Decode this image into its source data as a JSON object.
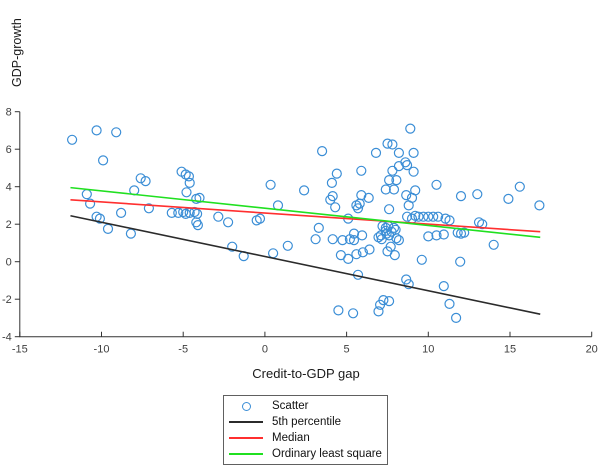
{
  "figure": {
    "background": "#ffffff",
    "axis_color": "#333333",
    "tick_label_color": "#404040"
  },
  "chart_data": {
    "type": "scatter",
    "title": "",
    "xlabel": "Credit-to-GDP gap",
    "ylabel": "GDP-growth",
    "xlim": [
      -15,
      20
    ],
    "ylim": [
      -4,
      8
    ],
    "xticks": [
      -15,
      -10,
      -5,
      0,
      5,
      10,
      15,
      20
    ],
    "yticks": [
      -4,
      -2,
      0,
      2,
      4,
      6,
      8
    ],
    "grid": false,
    "legend_position": "below-center",
    "series": [
      {
        "name": "Scatter",
        "type": "scatter",
        "marker": "open-circle",
        "color": "#3b8ed6",
        "points": [
          [
            -11.8,
            6.5
          ],
          [
            -10.9,
            3.6
          ],
          [
            -10.7,
            3.1
          ],
          [
            -10.3,
            7.0
          ],
          [
            -10.3,
            2.4
          ],
          [
            -10.1,
            2.3
          ],
          [
            -9.9,
            5.4
          ],
          [
            -9.6,
            1.75
          ],
          [
            -9.1,
            6.9
          ],
          [
            -8.8,
            2.6
          ],
          [
            -8.2,
            1.5
          ],
          [
            -8.0,
            3.8
          ],
          [
            -7.6,
            4.45
          ],
          [
            -7.3,
            4.3
          ],
          [
            -7.1,
            2.85
          ],
          [
            -5.7,
            2.6
          ],
          [
            -5.3,
            2.6
          ],
          [
            -5.1,
            4.8
          ],
          [
            -5.0,
            2.65
          ],
          [
            -4.85,
            4.65
          ],
          [
            -4.85,
            2.55
          ],
          [
            -4.8,
            3.7
          ],
          [
            -4.65,
            4.55
          ],
          [
            -4.6,
            4.2
          ],
          [
            -4.6,
            2.6
          ],
          [
            -4.3,
            2.65
          ],
          [
            -4.2,
            3.35
          ],
          [
            -4.15,
            2.55
          ],
          [
            -4.2,
            2.1
          ],
          [
            -4.1,
            1.95
          ],
          [
            -4.0,
            3.4
          ],
          [
            -2.85,
            2.4
          ],
          [
            -2.25,
            2.1
          ],
          [
            -2.0,
            0.8
          ],
          [
            -1.3,
            0.3
          ],
          [
            -0.5,
            2.2
          ],
          [
            -0.3,
            2.3
          ],
          [
            0.35,
            4.1
          ],
          [
            0.5,
            0.45
          ],
          [
            0.8,
            3.0
          ],
          [
            1.4,
            0.85
          ],
          [
            2.4,
            3.8
          ],
          [
            3.1,
            1.2
          ],
          [
            3.3,
            1.8
          ],
          [
            3.5,
            5.9
          ],
          [
            4.0,
            3.3
          ],
          [
            4.1,
            4.2
          ],
          [
            4.15,
            3.5
          ],
          [
            4.15,
            1.2
          ],
          [
            4.3,
            2.9
          ],
          [
            4.4,
            4.7
          ],
          [
            4.5,
            -2.6
          ],
          [
            4.65,
            0.35
          ],
          [
            4.75,
            1.15
          ],
          [
            5.1,
            2.3
          ],
          [
            5.1,
            0.15
          ],
          [
            5.2,
            1.2
          ],
          [
            5.4,
            -2.75
          ],
          [
            5.45,
            1.5
          ],
          [
            5.45,
            1.15
          ],
          [
            5.6,
            3.0
          ],
          [
            5.6,
            0.4
          ],
          [
            5.7,
            2.85
          ],
          [
            5.7,
            -0.7
          ],
          [
            5.8,
            3.1
          ],
          [
            5.9,
            4.85
          ],
          [
            5.9,
            3.55
          ],
          [
            5.95,
            1.4
          ],
          [
            6.0,
            0.5
          ],
          [
            6.35,
            3.4
          ],
          [
            6.4,
            0.65
          ],
          [
            6.8,
            5.8
          ],
          [
            6.95,
            -2.65
          ],
          [
            6.95,
            1.3
          ],
          [
            7.05,
            -2.3
          ],
          [
            7.1,
            1.4
          ],
          [
            7.15,
            1.2
          ],
          [
            7.2,
            1.9
          ],
          [
            7.25,
            -2.05
          ],
          [
            7.4,
            3.85
          ],
          [
            7.4,
            1.8
          ],
          [
            7.4,
            1.65
          ],
          [
            7.45,
            1.5
          ],
          [
            7.5,
            6.3
          ],
          [
            7.5,
            0.55
          ],
          [
            7.55,
            1.9
          ],
          [
            7.6,
            4.35
          ],
          [
            7.6,
            2.8
          ],
          [
            7.6,
            1.4
          ],
          [
            7.6,
            -2.1
          ],
          [
            7.7,
            0.8
          ],
          [
            7.75,
            1.6
          ],
          [
            7.8,
            6.25
          ],
          [
            7.8,
            4.85
          ],
          [
            7.9,
            3.85
          ],
          [
            7.9,
            1.8
          ],
          [
            7.95,
            0.35
          ],
          [
            8.0,
            1.7
          ],
          [
            8.05,
            4.35
          ],
          [
            8.05,
            1.25
          ],
          [
            8.2,
            5.8
          ],
          [
            8.2,
            5.1
          ],
          [
            8.2,
            1.15
          ],
          [
            8.6,
            5.3
          ],
          [
            8.65,
            3.55
          ],
          [
            8.65,
            -0.95
          ],
          [
            8.7,
            5.15
          ],
          [
            8.7,
            2.4
          ],
          [
            8.8,
            3.0
          ],
          [
            8.8,
            -1.2
          ],
          [
            8.9,
            7.1
          ],
          [
            9.0,
            3.4
          ],
          [
            9.0,
            2.3
          ],
          [
            9.1,
            5.8
          ],
          [
            9.1,
            4.8
          ],
          [
            9.2,
            3.8
          ],
          [
            9.2,
            2.45
          ],
          [
            9.4,
            2.4
          ],
          [
            9.6,
            0.1
          ],
          [
            9.7,
            2.4
          ],
          [
            10.0,
            2.4
          ],
          [
            10.0,
            1.35
          ],
          [
            10.3,
            2.4
          ],
          [
            10.5,
            4.1
          ],
          [
            10.5,
            1.4
          ],
          [
            10.6,
            2.4
          ],
          [
            10.95,
            1.45
          ],
          [
            10.95,
            -1.3
          ],
          [
            11.05,
            2.3
          ],
          [
            11.3,
            2.2
          ],
          [
            11.3,
            -2.25
          ],
          [
            11.7,
            -3.0
          ],
          [
            11.8,
            1.55
          ],
          [
            11.95,
            0.0
          ],
          [
            12.0,
            3.5
          ],
          [
            12.0,
            1.5
          ],
          [
            12.2,
            1.55
          ],
          [
            13.0,
            3.6
          ],
          [
            13.1,
            2.1
          ],
          [
            13.3,
            2.0
          ],
          [
            14.0,
            0.9
          ],
          [
            14.9,
            3.35
          ],
          [
            15.6,
            4.0
          ],
          [
            16.8,
            3.0
          ]
        ]
      },
      {
        "name": "5th percentile",
        "type": "line",
        "color": "#2b2b2b",
        "points": [
          [
            -11.9,
            2.45
          ],
          [
            16.85,
            -2.8
          ]
        ]
      },
      {
        "name": "Median",
        "type": "line",
        "color": "#ff2f2f",
        "points": [
          [
            -11.9,
            3.3
          ],
          [
            16.85,
            1.6
          ]
        ]
      },
      {
        "name": "Ordinary least square",
        "type": "line",
        "color": "#20e020",
        "points": [
          [
            -11.9,
            3.95
          ],
          [
            16.85,
            1.3
          ]
        ]
      }
    ]
  }
}
